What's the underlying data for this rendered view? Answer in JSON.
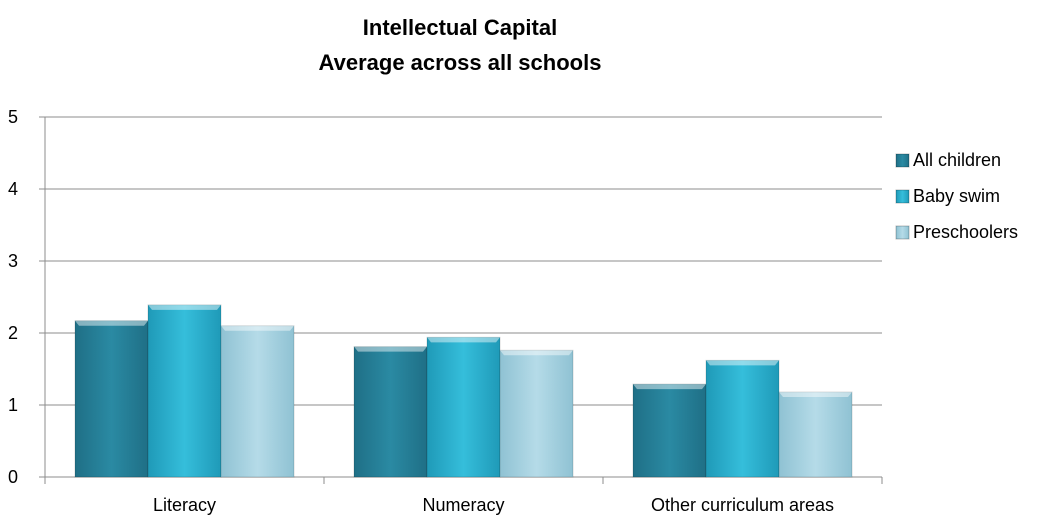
{
  "chart_data": {
    "type": "bar",
    "title": "Intellectual Capital",
    "subtitle": "Average across all schools",
    "xlabel": "",
    "ylabel": "",
    "categories": [
      "Literacy",
      "Numeracy",
      "Other curriculum areas"
    ],
    "series": [
      {
        "name": "All children",
        "values": [
          2.17,
          1.81,
          1.29
        ],
        "color": "#2a8aa3"
      },
      {
        "name": "Baby swim",
        "values": [
          2.39,
          1.94,
          1.62
        ],
        "color": "#2fb6d2"
      },
      {
        "name": "Preschoolers",
        "values": [
          2.1,
          1.76,
          1.18
        ],
        "color": "#a9d4e2"
      }
    ],
    "ylim": [
      0,
      5
    ],
    "yticks": [
      "0",
      "1",
      "2",
      "3",
      "4",
      "5"
    ],
    "grid": true,
    "legend": "right"
  }
}
